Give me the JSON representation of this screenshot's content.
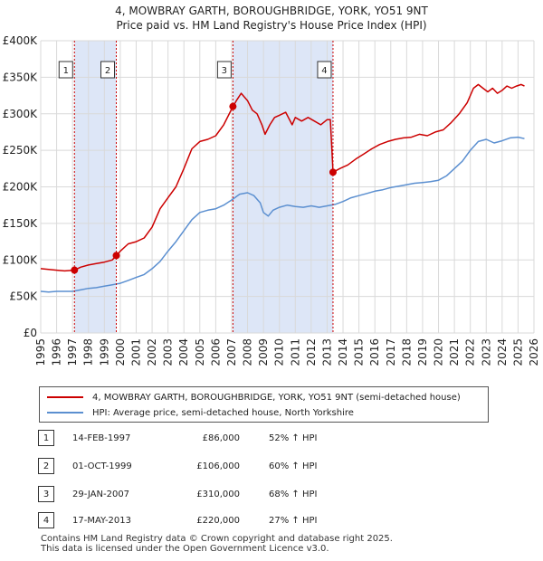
{
  "title_line1": "4, MOWBRAY GARTH, BOROUGHBRIDGE, YORK, YO51 9NT",
  "title_line2": "Price paid vs. HM Land Registry's House Price Index (HPI)",
  "colors": {
    "property": "#cc0000",
    "hpi": "#5b8fd0",
    "shade": "#dde6f7",
    "grid": "#d9d9d9"
  },
  "chart_data": {
    "type": "line",
    "xlim": [
      1995,
      2026
    ],
    "ylim": [
      0,
      400000
    ],
    "y_ticks": [
      0,
      50000,
      100000,
      150000,
      200000,
      250000,
      300000,
      350000,
      400000
    ],
    "y_tick_labels": [
      "£0",
      "£50K",
      "£100K",
      "£150K",
      "£200K",
      "£250K",
      "£300K",
      "£350K",
      "£400K"
    ],
    "x_ticks": [
      1995,
      1996,
      1997,
      1998,
      1999,
      2000,
      2001,
      2002,
      2003,
      2004,
      2005,
      2006,
      2007,
      2008,
      2009,
      2010,
      2011,
      2012,
      2013,
      2014,
      2015,
      2016,
      2017,
      2018,
      2019,
      2020,
      2021,
      2022,
      2023,
      2024,
      2025,
      2026
    ],
    "x_tick_labels": [
      "1995",
      "1996",
      "1997",
      "1998",
      "1999",
      "2000",
      "2001",
      "2002",
      "2003",
      "2004",
      "2005",
      "2006",
      "2007",
      "2008",
      "2009",
      "2010",
      "2011",
      "2012",
      "2013",
      "2014",
      "2015",
      "2016",
      "2017",
      "2018",
      "2019",
      "2020",
      "2021",
      "2022",
      "2023",
      "2024",
      "2025",
      "2026"
    ],
    "shaded_ranges": [
      [
        1997.12,
        1999.75
      ],
      [
        2007.08,
        2013.37
      ]
    ],
    "series": [
      {
        "name": "4, MOWBRAY GARTH, BOROUGHBRIDGE, YORK, YO51 9NT (semi-detached house)",
        "color": "#cc0000",
        "x": [
          1995.0,
          1995.5,
          1996.0,
          1996.5,
          1997.12,
          1997.5,
          1998.0,
          1998.5,
          1999.0,
          1999.5,
          1999.75,
          2000.0,
          2000.5,
          2001.0,
          2001.5,
          2002.0,
          2002.5,
          2003.0,
          2003.5,
          2004.0,
          2004.5,
          2005.0,
          2005.5,
          2006.0,
          2006.5,
          2007.08,
          2007.3,
          2007.6,
          2008.0,
          2008.3,
          2008.6,
          2008.9,
          2009.1,
          2009.4,
          2009.7,
          2010.0,
          2010.4,
          2010.8,
          2011.0,
          2011.4,
          2011.8,
          2012.2,
          2012.6,
          2013.0,
          2013.2,
          2013.37,
          2013.8,
          2014.3,
          2014.8,
          2015.3,
          2015.8,
          2016.3,
          2016.8,
          2017.3,
          2017.8,
          2018.3,
          2018.8,
          2019.3,
          2019.8,
          2020.3,
          2020.8,
          2021.3,
          2021.8,
          2022.2,
          2022.5,
          2022.8,
          2023.1,
          2023.4,
          2023.7,
          2024.0,
          2024.3,
          2024.6,
          2024.9,
          2025.2,
          2025.4
        ],
        "y": [
          88000,
          87000,
          86000,
          85000,
          86000,
          90000,
          93000,
          95000,
          97000,
          100000,
          106000,
          112000,
          122000,
          125000,
          130000,
          145000,
          170000,
          185000,
          200000,
          225000,
          252000,
          262000,
          265000,
          270000,
          285000,
          310000,
          318000,
          328000,
          318000,
          305000,
          300000,
          285000,
          272000,
          285000,
          295000,
          298000,
          302000,
          285000,
          295000,
          290000,
          295000,
          290000,
          285000,
          292000,
          292000,
          220000,
          225000,
          230000,
          238000,
          245000,
          252000,
          258000,
          262000,
          265000,
          267000,
          268000,
          272000,
          270000,
          275000,
          278000,
          288000,
          300000,
          315000,
          335000,
          340000,
          335000,
          330000,
          335000,
          328000,
          332000,
          338000,
          335000,
          338000,
          340000,
          338000
        ]
      },
      {
        "name": "HPI: Average price, semi-detached house, North Yorkshire",
        "color": "#5b8fd0",
        "x": [
          1995.0,
          1995.5,
          1996.0,
          1996.5,
          1997.0,
          1997.5,
          1998.0,
          1998.5,
          1999.0,
          1999.5,
          2000.0,
          2000.5,
          2001.0,
          2001.5,
          2002.0,
          2002.5,
          2003.0,
          2003.5,
          2004.0,
          2004.5,
          2005.0,
          2005.5,
          2006.0,
          2006.5,
          2007.0,
          2007.5,
          2008.0,
          2008.4,
          2008.8,
          2009.0,
          2009.3,
          2009.6,
          2010.0,
          2010.5,
          2011.0,
          2011.5,
          2012.0,
          2012.5,
          2013.0,
          2013.5,
          2014.0,
          2014.5,
          2015.0,
          2015.5,
          2016.0,
          2016.5,
          2017.0,
          2017.5,
          2018.0,
          2018.5,
          2019.0,
          2019.5,
          2020.0,
          2020.5,
          2021.0,
          2021.5,
          2022.0,
          2022.5,
          2023.0,
          2023.5,
          2024.0,
          2024.5,
          2025.0,
          2025.4
        ],
        "y": [
          57000,
          56000,
          57000,
          57000,
          57000,
          59000,
          61000,
          62000,
          64000,
          66000,
          68000,
          72000,
          76000,
          80000,
          88000,
          98000,
          112000,
          125000,
          140000,
          155000,
          165000,
          168000,
          170000,
          175000,
          182000,
          190000,
          192000,
          188000,
          178000,
          165000,
          160000,
          168000,
          172000,
          175000,
          173000,
          172000,
          174000,
          172000,
          174000,
          176000,
          180000,
          185000,
          188000,
          191000,
          194000,
          196000,
          199000,
          201000,
          203000,
          205000,
          206000,
          207000,
          209000,
          215000,
          225000,
          235000,
          250000,
          262000,
          265000,
          260000,
          263000,
          267000,
          268000,
          266000
        ]
      }
    ],
    "sales": [
      {
        "label": "1",
        "x": 1997.12,
        "y": 86000
      },
      {
        "label": "2",
        "x": 1999.75,
        "y": 106000
      },
      {
        "label": "3",
        "x": 2007.08,
        "y": 310000
      },
      {
        "label": "4",
        "x": 2013.37,
        "y": 220000
      }
    ]
  },
  "legend": {
    "property": "4, MOWBRAY GARTH, BOROUGHBRIDGE, YORK, YO51 9NT (semi-detached house)",
    "hpi": "HPI: Average price, semi-detached house, North Yorkshire"
  },
  "transactions": [
    {
      "num": "1",
      "date": "14-FEB-1997",
      "price": "£86,000",
      "hpi": "52% ↑ HPI"
    },
    {
      "num": "2",
      "date": "01-OCT-1999",
      "price": "£106,000",
      "hpi": "60% ↑ HPI"
    },
    {
      "num": "3",
      "date": "29-JAN-2007",
      "price": "£310,000",
      "hpi": "68% ↑ HPI"
    },
    {
      "num": "4",
      "date": "17-MAY-2013",
      "price": "£220,000",
      "hpi": "27% ↑ HPI"
    }
  ],
  "footer_line1": "Contains HM Land Registry data © Crown copyright and database right 2025.",
  "footer_line2": "This data is licensed under the Open Government Licence v3.0."
}
